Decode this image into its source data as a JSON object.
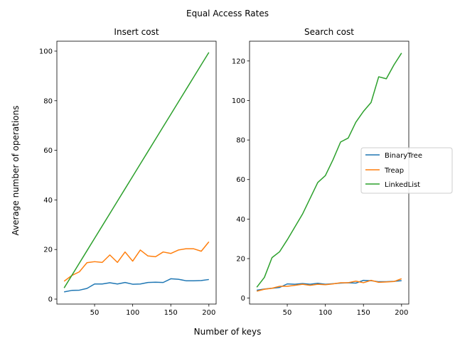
{
  "figure": {
    "title": "Equal Access Rates",
    "xlabel": "Number of keys",
    "ylabel": "Average number of operations"
  },
  "legend": {
    "placement": "right-center",
    "entries": [
      {
        "name": "BinaryTree",
        "color": "#1f77b4"
      },
      {
        "name": "Treap",
        "color": "#ff7f0e"
      },
      {
        "name": "LinkedList",
        "color": "#2ca02c"
      }
    ]
  },
  "chart_data": [
    {
      "type": "line",
      "title": "Insert cost",
      "xlim": [
        0.5,
        209.5
      ],
      "ylim": [
        -2,
        104
      ],
      "xticks": [
        50,
        100,
        150,
        200
      ],
      "yticks": [
        0,
        20,
        40,
        60,
        80,
        100
      ],
      "x": [
        10,
        20,
        30,
        40,
        50,
        60,
        70,
        80,
        90,
        100,
        110,
        120,
        130,
        140,
        150,
        160,
        170,
        180,
        190,
        200
      ],
      "series": [
        {
          "name": "BinaryTree",
          "color": "#1f77b4",
          "values": [
            2.9,
            3.5,
            3.6,
            4.3,
            6.1,
            6.1,
            6.6,
            6.1,
            6.7,
            6.0,
            6.1,
            6.7,
            6.8,
            6.7,
            8.2,
            8.0,
            7.4,
            7.4,
            7.5,
            7.9
          ]
        },
        {
          "name": "Treap",
          "color": "#ff7f0e",
          "values": [
            7.2,
            9.5,
            11.0,
            14.7,
            15.1,
            14.8,
            17.8,
            14.8,
            19.0,
            15.3,
            19.8,
            17.4,
            17.1,
            19.0,
            18.4,
            19.8,
            20.3,
            20.3,
            19.3,
            23.1
          ]
        },
        {
          "name": "LinkedList",
          "color": "#2ca02c",
          "values": [
            4.5,
            9.5,
            14.5,
            19.5,
            24.5,
            29.5,
            34.5,
            39.5,
            44.5,
            49.5,
            54.5,
            59.5,
            64.5,
            69.5,
            74.5,
            79.5,
            84.5,
            89.5,
            94.5,
            99.5
          ]
        }
      ]
    },
    {
      "type": "line",
      "title": "Search cost",
      "xlim": [
        0.5,
        209.5
      ],
      "ylim": [
        -3,
        130
      ],
      "xticks": [
        50,
        100,
        150,
        200
      ],
      "yticks": [
        0,
        20,
        40,
        60,
        80,
        100,
        120
      ],
      "x": [
        10,
        20,
        30,
        40,
        50,
        60,
        70,
        80,
        90,
        100,
        110,
        120,
        130,
        140,
        150,
        160,
        170,
        180,
        190,
        200
      ],
      "series": [
        {
          "name": "BinaryTree",
          "color": "#1f77b4",
          "values": [
            4.0,
            4.6,
            5.0,
            5.4,
            7.2,
            7.0,
            7.4,
            7.0,
            7.5,
            7.0,
            7.3,
            7.6,
            7.8,
            7.6,
            9.0,
            8.8,
            8.3,
            8.3,
            8.5,
            8.8
          ]
        },
        {
          "name": "Treap",
          "color": "#ff7f0e",
          "values": [
            3.5,
            4.5,
            5.0,
            6.0,
            6.0,
            6.5,
            7.0,
            6.5,
            7.0,
            6.8,
            7.2,
            7.8,
            7.8,
            8.6,
            7.8,
            9.0,
            8.0,
            8.2,
            8.4,
            9.8
          ]
        },
        {
          "name": "LinkedList",
          "color": "#2ca02c",
          "values": [
            5.5,
            10.5,
            20.5,
            23.5,
            29.5,
            36.0,
            42.5,
            50.5,
            58.5,
            62.0,
            70.0,
            79.0,
            81.0,
            89.0,
            94.5,
            99.0,
            112.0,
            111.0,
            118.0,
            124.0
          ]
        }
      ]
    }
  ]
}
